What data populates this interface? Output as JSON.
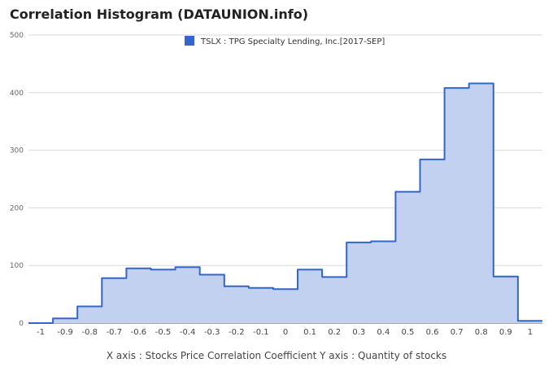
{
  "chart_data": {
    "type": "area",
    "title": "Correlation Histogram (DATAUNION.info)",
    "xlabel": "X axis : Stocks Price Correlation Coefficient  Y axis : Quantity of stocks",
    "ylabel": "",
    "xlim": [
      -1.05,
      1.05
    ],
    "ylim": [
      0,
      500
    ],
    "x_ticks": [
      -1,
      -0.9,
      -0.8,
      -0.7,
      -0.6,
      -0.5,
      -0.4,
      -0.3,
      -0.2,
      -0.1,
      0,
      0.1,
      0.2,
      0.3,
      0.4,
      0.5,
      0.6,
      0.7,
      0.8,
      0.9,
      1
    ],
    "x_tick_labels": [
      "-1",
      "-0.9",
      "-0.8",
      "-0.7",
      "-0.6",
      "-0.5",
      "-0.4",
      "-0.3",
      "-0.2",
      "-0.1",
      "0",
      "0.1",
      "0.2",
      "0.3",
      "0.4",
      "0.5",
      "0.6",
      "0.7",
      "0.8",
      "0.9",
      "1"
    ],
    "y_ticks": [
      0,
      100,
      200,
      300,
      400,
      500
    ],
    "grid": true,
    "legend_position": "top-center",
    "series": [
      {
        "name": "TSLX : TPG Specialty Lending, Inc.[2017-SEP]",
        "color": "#3366cc",
        "fill": "#c3d1f0",
        "x": [
          -1,
          -0.9,
          -0.8,
          -0.7,
          -0.6,
          -0.5,
          -0.4,
          -0.3,
          -0.2,
          -0.1,
          0,
          0.1,
          0.2,
          0.3,
          0.4,
          0.5,
          0.6,
          0.7,
          0.8,
          0.9,
          1
        ],
        "values": [
          0,
          8,
          29,
          78,
          95,
          93,
          97,
          84,
          64,
          61,
          59,
          93,
          80,
          140,
          142,
          228,
          284,
          408,
          416,
          81,
          4
        ]
      }
    ]
  }
}
